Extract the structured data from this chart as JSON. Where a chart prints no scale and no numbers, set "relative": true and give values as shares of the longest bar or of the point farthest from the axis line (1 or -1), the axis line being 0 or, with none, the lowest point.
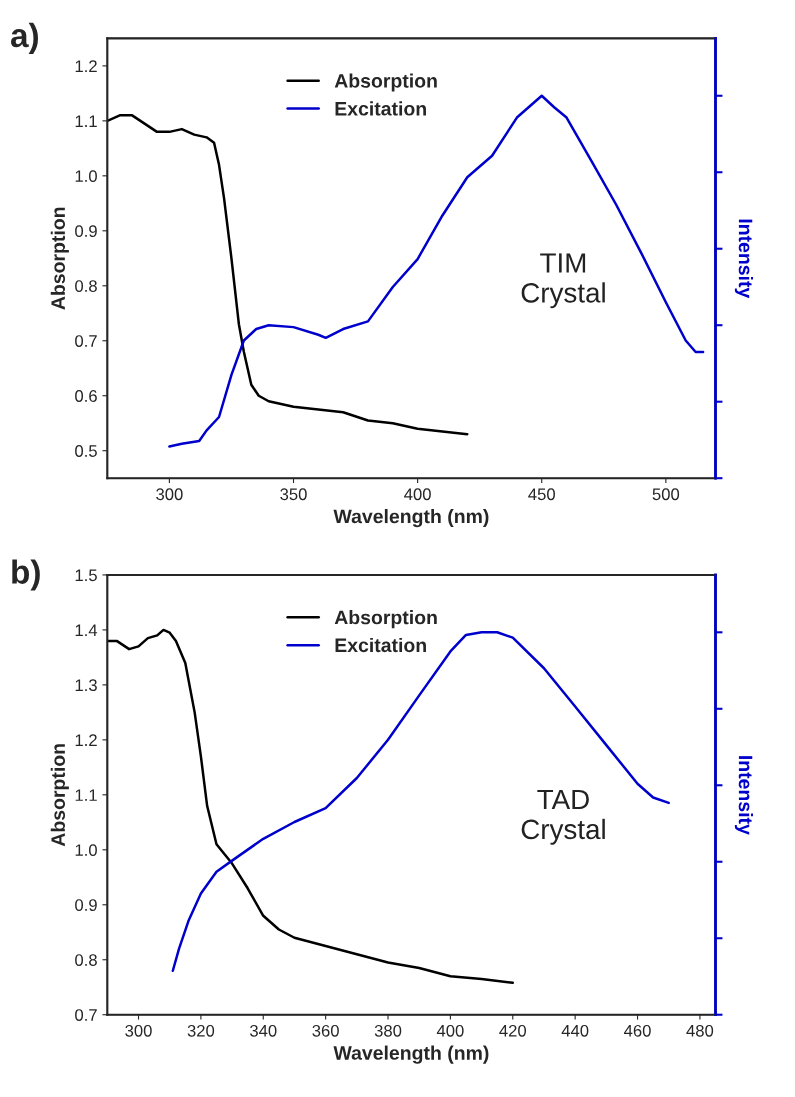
{
  "chart_data": [
    {
      "type": "line",
      "title": "a)",
      "xlabel": "Wavelength (nm)",
      "ylabel": "Absorption",
      "xlim": [
        275,
        520
      ],
      "xticks": [
        300,
        350,
        400,
        450,
        500
      ],
      "ylim": [
        0.45,
        1.25
      ],
      "yticks": [
        0.5,
        0.6,
        0.7,
        0.8,
        0.9,
        {
          "value": 1.0,
          "label": "1.0"
        },
        1.1,
        1.2
      ],
      "legend": "top",
      "annotations": [
        "TIM\nCrystal"
      ],
      "series": [
        {
          "name": "Absorption",
          "color": "#000000",
          "x": [
            275,
            280,
            285,
            290,
            295,
            300,
            305,
            310,
            315,
            318,
            320,
            322,
            325,
            328,
            330,
            333,
            336,
            340,
            350,
            360,
            370,
            380,
            390,
            400,
            410,
            420
          ],
          "values": [
            1.1,
            1.11,
            1.11,
            1.095,
            1.08,
            1.08,
            1.085,
            1.075,
            1.07,
            1.06,
            1.02,
            0.96,
            0.85,
            0.73,
            0.68,
            0.62,
            0.6,
            0.59,
            0.58,
            0.575,
            0.57,
            0.555,
            0.55,
            0.54,
            0.535,
            0.53
          ]
        }
      ]
    },
    {
      "type": "line",
      "relative": true,
      "y2label": "Intensity",
      "xlim": [
        275,
        520
      ],
      "series": [
        {
          "name": "Excitation",
          "color": "#0000cc",
          "x": [
            300,
            305,
            312,
            315,
            320,
            325,
            330,
            335,
            340,
            350,
            360,
            363,
            370,
            380,
            390,
            400,
            410,
            420,
            430,
            440,
            450,
            455,
            460,
            470,
            480,
            490,
            500,
            508,
            512,
            515
          ],
          "values": [
            0.083,
            0.09,
            0.097,
            0.125,
            0.16,
            0.27,
            0.36,
            0.39,
            0.4,
            0.395,
            0.375,
            0.367,
            0.39,
            0.41,
            0.5,
            0.573,
            0.687,
            0.787,
            0.843,
            0.943,
            1.0,
            0.97,
            0.943,
            0.83,
            0.715,
            0.59,
            0.46,
            0.36,
            0.33,
            0.33
          ]
        }
      ]
    },
    {
      "type": "line",
      "title": "b)",
      "xlabel": "Wavelength (nm)",
      "ylabel": "Absorption",
      "xlim": [
        290,
        485
      ],
      "xticks": [
        300,
        320,
        340,
        360,
        380,
        400,
        420,
        440,
        460,
        480
      ],
      "ylim": [
        0.7,
        1.5
      ],
      "yticks": [
        0.7,
        0.8,
        0.9,
        {
          "value": 1.0,
          "label": "1.0"
        },
        1.1,
        1.2,
        1.3,
        1.4,
        1.5
      ],
      "legend": "top",
      "annotations": [
        "TAD\nCrystal"
      ],
      "series": [
        {
          "name": "Absorption",
          "color": "#000000",
          "x": [
            290,
            293,
            297,
            300,
            303,
            306,
            308,
            310,
            312,
            315,
            318,
            320,
            322,
            325,
            330,
            335,
            340,
            345,
            350,
            360,
            370,
            380,
            390,
            400,
            410,
            420
          ],
          "values": [
            1.38,
            1.38,
            1.365,
            1.37,
            1.385,
            1.39,
            1.4,
            1.395,
            1.38,
            1.34,
            1.25,
            1.17,
            1.08,
            1.01,
            0.975,
            0.93,
            0.88,
            0.855,
            0.84,
            0.825,
            0.81,
            0.795,
            0.785,
            0.77,
            0.765,
            0.758
          ]
        }
      ]
    },
    {
      "type": "line",
      "relative": true,
      "y2label": "Intensity",
      "xlim": [
        290,
        485
      ],
      "series": [
        {
          "name": "Excitation",
          "color": "#0000cc",
          "x": [
            311,
            313,
            316,
            320,
            325,
            330,
            340,
            350,
            360,
            370,
            380,
            390,
            400,
            405,
            410,
            415,
            420,
            430,
            440,
            450,
            460,
            465,
            470
          ],
          "values": [
            0.115,
            0.173,
            0.245,
            0.317,
            0.374,
            0.403,
            0.46,
            0.504,
            0.54,
            0.619,
            0.719,
            0.835,
            0.95,
            0.993,
            1.0,
            1.0,
            0.986,
            0.906,
            0.806,
            0.705,
            0.604,
            0.568,
            0.554
          ]
        }
      ]
    }
  ]
}
